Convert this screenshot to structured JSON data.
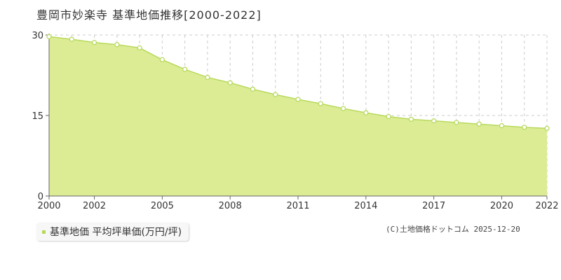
{
  "title": "豊岡市妙楽寺 基準地価推移[2000-2022]",
  "legend": {
    "label": "基準地価 平均坪単価(万円/坪)"
  },
  "copyright": "(C)土地価格ドットコム 2025-12-20",
  "colors": {
    "fill": "#dcec95",
    "line": "#b8d95c",
    "grid": "#cccccc",
    "axis": "#666666"
  },
  "chart_data": {
    "type": "area",
    "title": "豊岡市妙楽寺 基準地価推移[2000-2022]",
    "xlabel": "",
    "ylabel": "",
    "xlim": [
      2000,
      2022
    ],
    "ylim": [
      0,
      30
    ],
    "yticks": [
      0,
      15,
      30
    ],
    "xticks": [
      2000,
      2002,
      2005,
      2008,
      2011,
      2014,
      2017,
      2020,
      2022
    ],
    "grid": true,
    "legend_position": "bottom-left",
    "series": [
      {
        "name": "基準地価 平均坪単価(万円/坪)",
        "x": [
          2000,
          2001,
          2002,
          2003,
          2004,
          2005,
          2006,
          2007,
          2008,
          2009,
          2010,
          2011,
          2012,
          2013,
          2014,
          2015,
          2016,
          2017,
          2018,
          2019,
          2020,
          2021,
          2022
        ],
        "values": [
          29.7,
          29.2,
          28.6,
          28.2,
          27.6,
          25.4,
          23.6,
          22.1,
          21.1,
          19.9,
          18.9,
          18.0,
          17.2,
          16.3,
          15.5,
          14.8,
          14.3,
          14.0,
          13.7,
          13.4,
          13.1,
          12.8,
          12.6
        ]
      }
    ]
  }
}
